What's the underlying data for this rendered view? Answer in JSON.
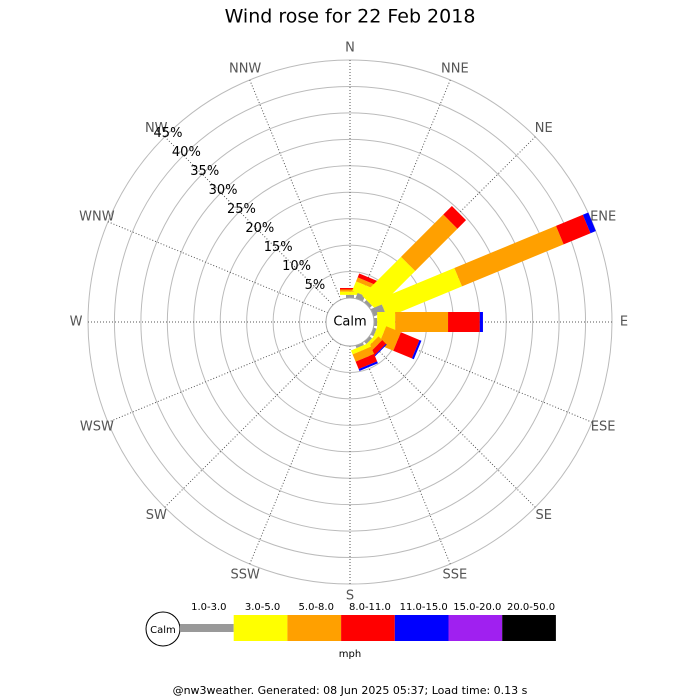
{
  "chart_data": {
    "type": "windrose",
    "title": "Wind rose for 22 Feb 2018",
    "categories": [
      "N",
      "NNE",
      "NE",
      "ENE",
      "E",
      "ESE",
      "SE",
      "SSE",
      "S",
      "SSW",
      "SW",
      "WSW",
      "W",
      "WNW",
      "NW",
      "NNW"
    ],
    "ylim": [
      0,
      45
    ],
    "yticks": [
      {
        "value": 5,
        "label": "5%"
      },
      {
        "value": 10,
        "label": "10%"
      },
      {
        "value": 15,
        "label": "15%"
      },
      {
        "value": 20,
        "label": "20%"
      },
      {
        "value": 25,
        "label": "25%"
      },
      {
        "value": 30,
        "label": "30%"
      },
      {
        "value": 35,
        "label": "35%"
      },
      {
        "value": 40,
        "label": "40%"
      },
      {
        "value": 45,
        "label": "45%"
      }
    ],
    "calm_label": "Calm",
    "units_label": "mph",
    "series": [
      {
        "name": "1.0-3.0",
        "color": "#999999",
        "values": [
          0.6,
          1.1,
          0.6,
          2.3,
          0.6,
          0.6,
          0.6,
          0.5,
          0,
          0,
          0,
          0,
          0,
          0,
          0,
          0
        ]
      },
      {
        "name": "3.0-5.0",
        "color": "#ffff00",
        "values": [
          0.6,
          1.9,
          10.4,
          15.3,
          3.4,
          1.5,
          0.6,
          0.8,
          0,
          0,
          0,
          0,
          0,
          0,
          0,
          0
        ]
      },
      {
        "name": "5.0-8.0",
        "color": "#ffa000",
        "values": [
          0.4,
          0.8,
          11.3,
          20.8,
          10.0,
          3.0,
          1.0,
          1.5,
          0,
          0,
          0,
          0,
          0,
          0,
          0,
          0
        ]
      },
      {
        "name": "8.0-11.0",
        "color": "#ff0000",
        "values": [
          0.3,
          0.8,
          2.3,
          5.5,
          6.0,
          3.8,
          1.0,
          1.5,
          0,
          0,
          0,
          0,
          0,
          0,
          0,
          0
        ]
      },
      {
        "name": "11.0-15.0",
        "color": "#0000ff",
        "values": [
          0,
          0,
          0,
          1.1,
          0.6,
          0.4,
          0.2,
          0.4,
          0,
          0,
          0,
          0,
          0,
          0,
          0,
          0
        ]
      },
      {
        "name": "15.0-20.0",
        "color": "#a020f0",
        "values": [
          0,
          0,
          0,
          0,
          0,
          0,
          0,
          0,
          0,
          0,
          0,
          0,
          0,
          0,
          0,
          0
        ]
      },
      {
        "name": "20.0-50.0",
        "color": "#000000",
        "values": [
          0,
          0,
          0,
          0,
          0,
          0,
          0,
          0,
          0,
          0,
          0,
          0,
          0,
          0,
          0,
          0
        ]
      }
    ],
    "footer": "@nw3weather. Generated: 08 Jun 2025 05:37; Load time: 0.13 s"
  }
}
